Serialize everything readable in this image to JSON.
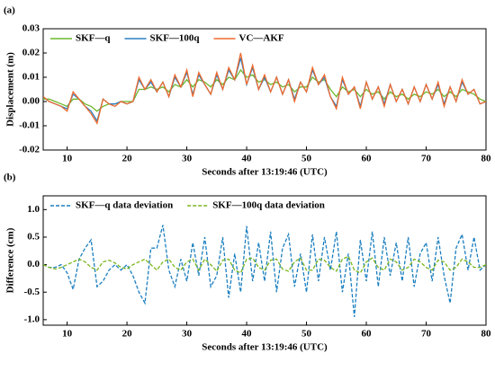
{
  "chart_data": [
    {
      "type": "line",
      "panel_label": "(a)",
      "x_label": "Seconds after 13:19:46 (UTC)",
      "y_label": "Displacement (m)",
      "x": [
        6,
        7,
        8,
        9,
        10,
        11,
        12,
        13,
        14,
        15,
        16,
        17,
        18,
        19,
        20,
        21,
        22,
        23,
        24,
        25,
        26,
        27,
        28,
        29,
        30,
        31,
        32,
        33,
        34,
        35,
        36,
        37,
        38,
        39,
        40,
        41,
        42,
        43,
        44,
        45,
        46,
        47,
        48,
        49,
        50,
        51,
        52,
        53,
        54,
        55,
        56,
        57,
        58,
        59,
        60,
        61,
        62,
        63,
        64,
        65,
        66,
        67,
        68,
        69,
        70,
        71,
        72,
        73,
        74,
        75,
        76,
        77,
        78,
        79,
        80
      ],
      "series": [
        {
          "name": "SKF—q",
          "color": "#6cb82a",
          "values": [
            0.001,
            0.001,
            0.0,
            -0.001,
            -0.002,
            0.001,
            0.001,
            -0.001,
            -0.002,
            -0.004,
            -0.002,
            -0.001,
            -0.001,
            0.0,
            0.0,
            0.0,
            0.005,
            0.005,
            0.006,
            0.005,
            0.006,
            0.004,
            0.007,
            0.006,
            0.009,
            0.006,
            0.009,
            0.008,
            0.006,
            0.009,
            0.007,
            0.01,
            0.009,
            0.013,
            0.01,
            0.011,
            0.008,
            0.009,
            0.007,
            0.008,
            0.006,
            0.007,
            0.004,
            0.006,
            0.006,
            0.01,
            0.008,
            0.009,
            0.005,
            0.002,
            0.006,
            0.004,
            0.005,
            0.002,
            0.005,
            0.003,
            0.004,
            0.001,
            0.004,
            0.002,
            0.003,
            0.001,
            0.003,
            0.002,
            0.004,
            0.003,
            0.005,
            0.002,
            0.004,
            0.002,
            0.005,
            0.004,
            0.003,
            0.001,
            0.0
          ]
        },
        {
          "name": "SKF—100q",
          "color": "#2b7fc3",
          "values": [
            0.002,
            0.0,
            -0.001,
            -0.002,
            -0.003,
            0.003,
            0.001,
            -0.002,
            -0.004,
            -0.008,
            0.001,
            -0.001,
            -0.001,
            0.0,
            -0.001,
            0.0,
            0.009,
            0.005,
            0.008,
            0.004,
            0.008,
            0.002,
            0.01,
            0.006,
            0.012,
            0.003,
            0.011,
            0.007,
            0.003,
            0.011,
            0.005,
            0.013,
            0.009,
            0.018,
            0.007,
            0.014,
            0.005,
            0.01,
            0.004,
            0.01,
            0.003,
            0.009,
            0.001,
            0.008,
            0.004,
            0.013,
            0.007,
            0.01,
            0.002,
            -0.002,
            0.009,
            0.003,
            0.006,
            -0.002,
            0.008,
            0.001,
            0.006,
            -0.001,
            0.007,
            0.0,
            0.005,
            -0.001,
            0.006,
            0.0,
            0.007,
            0.001,
            0.007,
            -0.001,
            0.006,
            0.0,
            0.008,
            0.003,
            0.005,
            -0.001,
            0.0
          ]
        },
        {
          "name": "VC—AKF",
          "color": "#ee6a2e",
          "values": [
            0.002,
            0.0,
            -0.001,
            -0.002,
            -0.004,
            0.004,
            0.001,
            -0.002,
            -0.005,
            -0.009,
            0.001,
            -0.001,
            -0.002,
            0.0,
            -0.001,
            0.0,
            0.01,
            0.005,
            0.009,
            0.004,
            0.008,
            0.002,
            0.011,
            0.006,
            0.013,
            0.002,
            0.012,
            0.007,
            0.003,
            0.012,
            0.005,
            0.014,
            0.009,
            0.02,
            0.007,
            0.015,
            0.005,
            0.011,
            0.004,
            0.01,
            0.003,
            0.009,
            0.0,
            0.008,
            0.004,
            0.014,
            0.007,
            0.011,
            0.002,
            -0.003,
            0.01,
            0.003,
            0.006,
            -0.003,
            0.008,
            0.001,
            0.006,
            -0.002,
            0.007,
            0.0,
            0.005,
            -0.001,
            0.006,
            0.0,
            0.007,
            0.001,
            0.008,
            -0.002,
            0.006,
            0.0,
            0.009,
            0.003,
            0.005,
            -0.001,
            0.0
          ]
        }
      ],
      "xlim": [
        6,
        80
      ],
      "xticks": [
        10,
        20,
        30,
        40,
        50,
        60,
        70,
        80
      ],
      "ylim": [
        -0.02,
        0.03
      ],
      "yticks": [
        -0.02,
        -0.01,
        {
          "value": 0,
          "label": "0.00"
        },
        0.01,
        0.02,
        0.03
      ],
      "line_style": "solid",
      "legend": "upper left"
    },
    {
      "type": "line",
      "panel_label": "(b)",
      "x_label": "Seconds after 13:19:46 (UTC)",
      "y_label": "Difference (cm)",
      "x": [
        6,
        7,
        8,
        9,
        10,
        11,
        12,
        13,
        14,
        15,
        16,
        17,
        18,
        19,
        20,
        21,
        22,
        23,
        24,
        25,
        26,
        27,
        28,
        29,
        30,
        31,
        32,
        33,
        34,
        35,
        36,
        37,
        38,
        39,
        40,
        41,
        42,
        43,
        44,
        45,
        46,
        47,
        48,
        49,
        50,
        51,
        52,
        53,
        54,
        55,
        56,
        57,
        58,
        59,
        60,
        61,
        62,
        63,
        64,
        65,
        66,
        67,
        68,
        69,
        70,
        71,
        72,
        73,
        74,
        75,
        76,
        77,
        78,
        79,
        80
      ],
      "series": [
        {
          "name": "SKF—q data deviation",
          "color": "#1b7fc0",
          "values": [
            0.0,
            -0.05,
            -0.05,
            0.0,
            -0.15,
            -0.45,
            0.1,
            0.3,
            0.45,
            -0.4,
            -0.3,
            -0.1,
            0.0,
            -0.1,
            0.0,
            -0.2,
            -0.5,
            -0.7,
            0.3,
            0.3,
            0.72,
            -0.1,
            -0.4,
            0.1,
            -0.3,
            0.4,
            -0.2,
            0.5,
            -0.4,
            -0.2,
            0.5,
            -0.6,
            0.2,
            -0.5,
            0.7,
            -0.3,
            0.4,
            -0.3,
            0.6,
            -0.5,
            0.3,
            0.55,
            -0.4,
            0.2,
            -0.5,
            0.55,
            -0.3,
            0.5,
            -0.1,
            0.6,
            -0.5,
            0.2,
            -0.95,
            0.45,
            -0.3,
            0.6,
            -0.4,
            0.5,
            -0.2,
            0.4,
            -0.3,
            0.5,
            -0.4,
            0.2,
            0.4,
            -0.3,
            0.5,
            -0.2,
            -0.7,
            0.3,
            0.55,
            -0.1,
            0.5,
            -0.1,
            0.0
          ]
        },
        {
          "name": "SKF—100q data deviation",
          "color": "#7ab51d",
          "values": [
            0.0,
            -0.05,
            -0.08,
            -0.05,
            0.0,
            0.05,
            0.1,
            0.05,
            -0.05,
            -0.1,
            0.05,
            0.08,
            0.03,
            -0.05,
            -0.08,
            0.0,
            0.05,
            0.1,
            0.0,
            -0.1,
            0.05,
            0.1,
            -0.05,
            -0.1,
            0.05,
            0.1,
            -0.1,
            0.1,
            0.0,
            -0.12,
            0.08,
            0.1,
            -0.1,
            -0.15,
            0.1,
            0.12,
            -0.05,
            -0.1,
            0.08,
            0.1,
            -0.08,
            -0.12,
            0.05,
            0.12,
            -0.1,
            -0.1,
            0.1,
            0.08,
            -0.05,
            -0.12,
            0.1,
            0.15,
            -0.1,
            -0.15,
            0.05,
            0.12,
            -0.05,
            -0.1,
            0.1,
            0.05,
            -0.1,
            -0.05,
            0.1,
            0.05,
            -0.05,
            -0.1,
            0.08,
            0.05,
            -0.1,
            -0.05,
            0.1,
            0.05,
            -0.05,
            -0.05,
            0.0
          ]
        }
      ],
      "xlim": [
        6,
        80
      ],
      "xticks": [
        10,
        20,
        30,
        40,
        50,
        60,
        70,
        80
      ],
      "ylim": [
        -1.1,
        1.25
      ],
      "yticks": [
        {
          "value": -1,
          "label": "-1.0"
        },
        -0.5,
        {
          "value": 0,
          "label": "0.0"
        },
        0.5,
        {
          "value": 1,
          "label": "1.0"
        }
      ],
      "line_style": "dashed",
      "legend": "upper left"
    }
  ]
}
